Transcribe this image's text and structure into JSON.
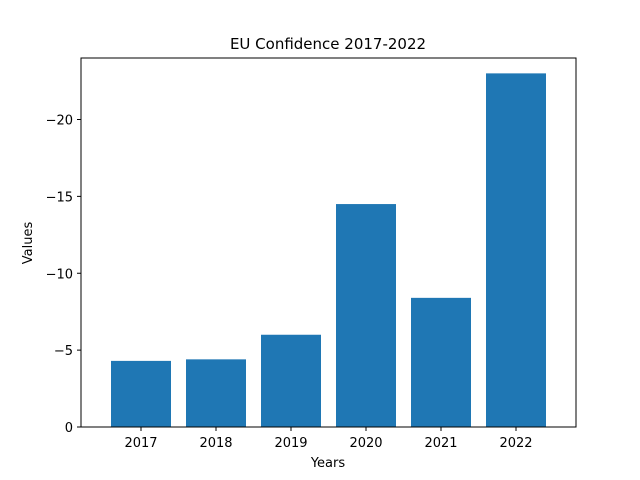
{
  "chart_data": {
    "type": "bar",
    "title": "EU Confidence 2017-2022",
    "xlabel": "Years",
    "ylabel": "Values",
    "categories": [
      "2017",
      "2018",
      "2019",
      "2020",
      "2021",
      "2022"
    ],
    "values": [
      -4.3,
      -4.4,
      -6.0,
      -14.5,
      -8.4,
      -23.0
    ],
    "ylim": [
      0,
      -24.0
    ],
    "y_inverted": true,
    "yticks": [
      0,
      -5,
      -10,
      -15,
      -20
    ],
    "ytick_labels": [
      "0",
      "−5",
      "−10",
      "−15",
      "−20"
    ],
    "bar_color": "#1f77b4",
    "grid": false,
    "legend": "none"
  }
}
